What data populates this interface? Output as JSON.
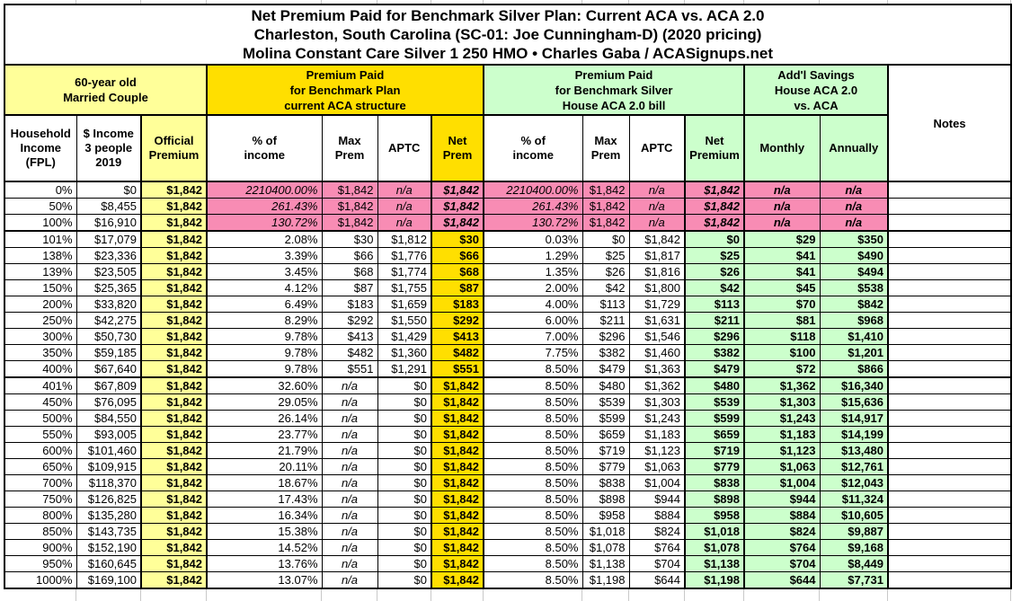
{
  "title": {
    "line1": "Net Premium Paid for Benchmark Silver Plan: Current ACA vs. ACA 2.0",
    "line2": "Charleston, South Carolina (SC-01: Joe Cunningham-D) (2020 pricing)",
    "line3": "Molina Constant Care Silver 1 250 HMO • Charles Gaba / ACASignups.net"
  },
  "groups": {
    "demographic": "60-year old\nMarried Couple",
    "aca_current": "Premium Paid\nfor Benchmark Plan\ncurrent ACA structure",
    "aca2": "Premium Paid\nfor Benchmark Silver\nHouse ACA 2.0 bill",
    "savings": "Add'l Savings\nHouse ACA 2.0\nvs. ACA",
    "notes": "Notes"
  },
  "columns": [
    "Household\nIncome\n(FPL)",
    "$ Income\n3 people\n2019",
    "Official\nPremium",
    "% of\nincome",
    "Max\nPrem",
    "APTC",
    "Net\nPrem",
    "% of\nincome",
    "Max\nPrem",
    "APTC",
    "Net\nPremium",
    "Monthly",
    "Annually"
  ],
  "colors": {
    "pale_yellow": "#FFFF99",
    "bright_yellow": "#FFDF00",
    "light_green": "#CCFFCC",
    "pink": "#F88CB4",
    "border": "#000000",
    "gridline": "#C9C9C9"
  },
  "rows": [
    {
      "pink": true,
      "thick_bottom": false,
      "cells": [
        "0%",
        "$0",
        "$1,842",
        "2210400.00%",
        "$1,842",
        "n/a",
        "$1,842",
        "2210400.00%",
        "$1,842",
        "n/a",
        "$1,842",
        "n/a",
        "n/a",
        ""
      ]
    },
    {
      "pink": true,
      "thick_bottom": false,
      "cells": [
        "50%",
        "$8,455",
        "$1,842",
        "261.43%",
        "$1,842",
        "n/a",
        "$1,842",
        "261.43%",
        "$1,842",
        "n/a",
        "$1,842",
        "n/a",
        "n/a",
        ""
      ]
    },
    {
      "pink": true,
      "thick_bottom": true,
      "cells": [
        "100%",
        "$16,910",
        "$1,842",
        "130.72%",
        "$1,842",
        "n/a",
        "$1,842",
        "130.72%",
        "$1,842",
        "n/a",
        "$1,842",
        "n/a",
        "n/a",
        ""
      ]
    },
    {
      "pink": false,
      "thick_bottom": false,
      "cells": [
        "101%",
        "$17,079",
        "$1,842",
        "2.08%",
        "$30",
        "$1,812",
        "$30",
        "0.03%",
        "$0",
        "$1,842",
        "$0",
        "$29",
        "$350",
        ""
      ]
    },
    {
      "pink": false,
      "thick_bottom": false,
      "cells": [
        "138%",
        "$23,336",
        "$1,842",
        "3.39%",
        "$66",
        "$1,776",
        "$66",
        "1.29%",
        "$25",
        "$1,817",
        "$25",
        "$41",
        "$490",
        ""
      ]
    },
    {
      "pink": false,
      "thick_bottom": false,
      "cells": [
        "139%",
        "$23,505",
        "$1,842",
        "3.45%",
        "$68",
        "$1,774",
        "$68",
        "1.35%",
        "$26",
        "$1,816",
        "$26",
        "$41",
        "$494",
        ""
      ]
    },
    {
      "pink": false,
      "thick_bottom": false,
      "cells": [
        "150%",
        "$25,365",
        "$1,842",
        "4.12%",
        "$87",
        "$1,755",
        "$87",
        "2.00%",
        "$42",
        "$1,800",
        "$42",
        "$45",
        "$538",
        ""
      ]
    },
    {
      "pink": false,
      "thick_bottom": false,
      "cells": [
        "200%",
        "$33,820",
        "$1,842",
        "6.49%",
        "$183",
        "$1,659",
        "$183",
        "4.00%",
        "$113",
        "$1,729",
        "$113",
        "$70",
        "$842",
        ""
      ]
    },
    {
      "pink": false,
      "thick_bottom": false,
      "cells": [
        "250%",
        "$42,275",
        "$1,842",
        "8.29%",
        "$292",
        "$1,550",
        "$292",
        "6.00%",
        "$211",
        "$1,631",
        "$211",
        "$81",
        "$968",
        ""
      ]
    },
    {
      "pink": false,
      "thick_bottom": false,
      "cells": [
        "300%",
        "$50,730",
        "$1,842",
        "9.78%",
        "$413",
        "$1,429",
        "$413",
        "7.00%",
        "$296",
        "$1,546",
        "$296",
        "$118",
        "$1,410",
        ""
      ]
    },
    {
      "pink": false,
      "thick_bottom": false,
      "cells": [
        "350%",
        "$59,185",
        "$1,842",
        "9.78%",
        "$482",
        "$1,360",
        "$482",
        "7.75%",
        "$382",
        "$1,460",
        "$382",
        "$100",
        "$1,201",
        ""
      ]
    },
    {
      "pink": false,
      "thick_bottom": true,
      "cells": [
        "400%",
        "$67,640",
        "$1,842",
        "9.78%",
        "$551",
        "$1,291",
        "$551",
        "8.50%",
        "$479",
        "$1,363",
        "$479",
        "$72",
        "$866",
        ""
      ]
    },
    {
      "pink": false,
      "thick_bottom": false,
      "cells": [
        "401%",
        "$67,809",
        "$1,842",
        "32.60%",
        "n/a",
        "$0",
        "$1,842",
        "8.50%",
        "$480",
        "$1,362",
        "$480",
        "$1,362",
        "$16,340",
        ""
      ]
    },
    {
      "pink": false,
      "thick_bottom": false,
      "cells": [
        "450%",
        "$76,095",
        "$1,842",
        "29.05%",
        "n/a",
        "$0",
        "$1,842",
        "8.50%",
        "$539",
        "$1,303",
        "$539",
        "$1,303",
        "$15,636",
        ""
      ]
    },
    {
      "pink": false,
      "thick_bottom": false,
      "cells": [
        "500%",
        "$84,550",
        "$1,842",
        "26.14%",
        "n/a",
        "$0",
        "$1,842",
        "8.50%",
        "$599",
        "$1,243",
        "$599",
        "$1,243",
        "$14,917",
        ""
      ]
    },
    {
      "pink": false,
      "thick_bottom": false,
      "cells": [
        "550%",
        "$93,005",
        "$1,842",
        "23.77%",
        "n/a",
        "$0",
        "$1,842",
        "8.50%",
        "$659",
        "$1,183",
        "$659",
        "$1,183",
        "$14,199",
        ""
      ]
    },
    {
      "pink": false,
      "thick_bottom": false,
      "cells": [
        "600%",
        "$101,460",
        "$1,842",
        "21.79%",
        "n/a",
        "$0",
        "$1,842",
        "8.50%",
        "$719",
        "$1,123",
        "$719",
        "$1,123",
        "$13,480",
        ""
      ]
    },
    {
      "pink": false,
      "thick_bottom": false,
      "cells": [
        "650%",
        "$109,915",
        "$1,842",
        "20.11%",
        "n/a",
        "$0",
        "$1,842",
        "8.50%",
        "$779",
        "$1,063",
        "$779",
        "$1,063",
        "$12,761",
        ""
      ]
    },
    {
      "pink": false,
      "thick_bottom": false,
      "cells": [
        "700%",
        "$118,370",
        "$1,842",
        "18.67%",
        "n/a",
        "$0",
        "$1,842",
        "8.50%",
        "$838",
        "$1,004",
        "$838",
        "$1,004",
        "$12,043",
        ""
      ]
    },
    {
      "pink": false,
      "thick_bottom": false,
      "cells": [
        "750%",
        "$126,825",
        "$1,842",
        "17.43%",
        "n/a",
        "$0",
        "$1,842",
        "8.50%",
        "$898",
        "$944",
        "$898",
        "$944",
        "$11,324",
        ""
      ]
    },
    {
      "pink": false,
      "thick_bottom": false,
      "cells": [
        "800%",
        "$135,280",
        "$1,842",
        "16.34%",
        "n/a",
        "$0",
        "$1,842",
        "8.50%",
        "$958",
        "$884",
        "$958",
        "$884",
        "$10,605",
        ""
      ]
    },
    {
      "pink": false,
      "thick_bottom": false,
      "cells": [
        "850%",
        "$143,735",
        "$1,842",
        "15.38%",
        "n/a",
        "$0",
        "$1,842",
        "8.50%",
        "$1,018",
        "$824",
        "$1,018",
        "$824",
        "$9,887",
        ""
      ]
    },
    {
      "pink": false,
      "thick_bottom": false,
      "cells": [
        "900%",
        "$152,190",
        "$1,842",
        "14.52%",
        "n/a",
        "$0",
        "$1,842",
        "8.50%",
        "$1,078",
        "$764",
        "$1,078",
        "$764",
        "$9,168",
        ""
      ]
    },
    {
      "pink": false,
      "thick_bottom": false,
      "cells": [
        "950%",
        "$160,645",
        "$1,842",
        "13.76%",
        "n/a",
        "$0",
        "$1,842",
        "8.50%",
        "$1,138",
        "$704",
        "$1,138",
        "$704",
        "$8,449",
        ""
      ]
    },
    {
      "pink": false,
      "thick_bottom": false,
      "cells": [
        "1000%",
        "$169,100",
        "$1,842",
        "13.07%",
        "n/a",
        "$0",
        "$1,842",
        "8.50%",
        "$1,198",
        "$644",
        "$1,198",
        "$644",
        "$7,731",
        ""
      ]
    }
  ]
}
